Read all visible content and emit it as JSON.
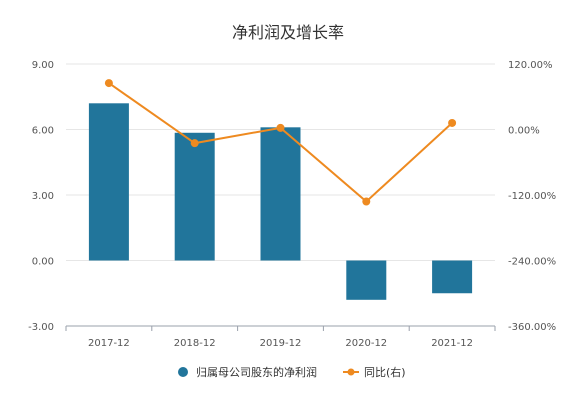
{
  "chart_data": {
    "type": "bar",
    "title": "净利润及增长率",
    "categories": [
      "2017-12",
      "2018-12",
      "2019-12",
      "2020-12",
      "2021-12"
    ],
    "series": [
      {
        "name": "归属母公司股东的净利润",
        "type": "bar",
        "axis": "left",
        "values": [
          7.2,
          5.85,
          6.1,
          -1.8,
          -1.5
        ],
        "color": "#21759b"
      },
      {
        "name": "同比(右)",
        "type": "line",
        "axis": "right",
        "values": [
          85,
          -25,
          3,
          -132,
          12
        ],
        "color": "#ee8a20"
      }
    ],
    "y_left": {
      "min": -3,
      "max": 9,
      "ticks": [
        "9.00",
        "6.00",
        "3.00",
        "0.00",
        "-3.00"
      ]
    },
    "y_right": {
      "min": -360,
      "max": 120,
      "ticks": [
        "120.00%",
        "0.00%",
        "-120.00%",
        "-240.00%",
        "-360.00%"
      ]
    },
    "grid": true,
    "legend_position": "bottom"
  }
}
